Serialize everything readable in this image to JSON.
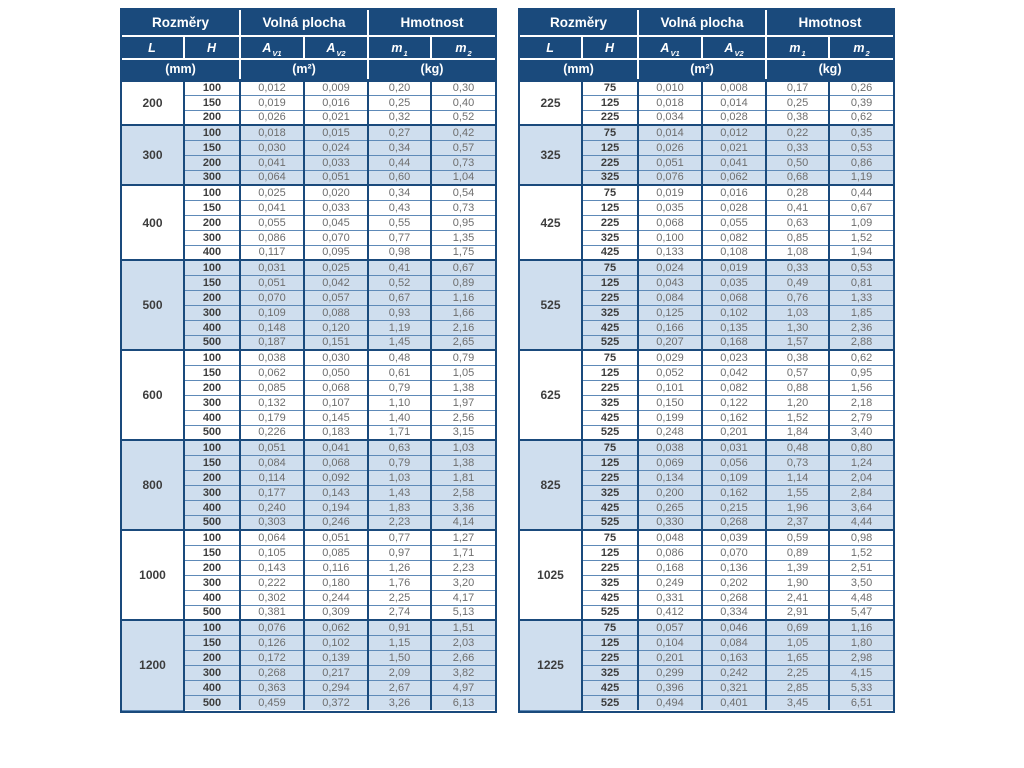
{
  "colors": {
    "header_bg": "#1a4a7c",
    "header_text": "#ffffff",
    "band_bg": "#cfdeee",
    "grid_line": "#1a4a7c",
    "row_line": "#5e8ab8",
    "dim_text": "#3d3d3d",
    "value_text": "#6e6e6e"
  },
  "header": {
    "groups": [
      "Rozměry",
      "Volná plocha",
      "Hmotnost"
    ],
    "columns": [
      {
        "main": "L",
        "sub": ""
      },
      {
        "main": "H",
        "sub": ""
      },
      {
        "main": "A",
        "sub": "V1"
      },
      {
        "main": "A",
        "sub": "V2"
      },
      {
        "main": "m",
        "sub": "1"
      },
      {
        "main": "m",
        "sub": "2"
      }
    ],
    "units": [
      "(mm)",
      "(m²)",
      "(kg)"
    ]
  },
  "tables": [
    {
      "name": "left",
      "groups": [
        {
          "L": "200",
          "rows": [
            [
              "100",
              "0,012",
              "0,009",
              "0,20",
              "0,30"
            ],
            [
              "150",
              "0,019",
              "0,016",
              "0,25",
              "0,40"
            ],
            [
              "200",
              "0,026",
              "0,021",
              "0,32",
              "0,52"
            ]
          ]
        },
        {
          "L": "300",
          "rows": [
            [
              "100",
              "0,018",
              "0,015",
              "0,27",
              "0,42"
            ],
            [
              "150",
              "0,030",
              "0,024",
              "0,34",
              "0,57"
            ],
            [
              "200",
              "0,041",
              "0,033",
              "0,44",
              "0,73"
            ],
            [
              "300",
              "0,064",
              "0,051",
              "0,60",
              "1,04"
            ]
          ]
        },
        {
          "L": "400",
          "rows": [
            [
              "100",
              "0,025",
              "0,020",
              "0,34",
              "0,54"
            ],
            [
              "150",
              "0,041",
              "0,033",
              "0,43",
              "0,73"
            ],
            [
              "200",
              "0,055",
              "0,045",
              "0,55",
              "0,95"
            ],
            [
              "300",
              "0,086",
              "0,070",
              "0,77",
              "1,35"
            ],
            [
              "400",
              "0,117",
              "0,095",
              "0,98",
              "1,75"
            ]
          ]
        },
        {
          "L": "500",
          "rows": [
            [
              "100",
              "0,031",
              "0,025",
              "0,41",
              "0,67"
            ],
            [
              "150",
              "0,051",
              "0,042",
              "0,52",
              "0,89"
            ],
            [
              "200",
              "0,070",
              "0,057",
              "0,67",
              "1,16"
            ],
            [
              "300",
              "0,109",
              "0,088",
              "0,93",
              "1,66"
            ],
            [
              "400",
              "0,148",
              "0,120",
              "1,19",
              "2,16"
            ],
            [
              "500",
              "0,187",
              "0,151",
              "1,45",
              "2,65"
            ]
          ]
        },
        {
          "L": "600",
          "rows": [
            [
              "100",
              "0,038",
              "0,030",
              "0,48",
              "0,79"
            ],
            [
              "150",
              "0,062",
              "0,050",
              "0,61",
              "1,05"
            ],
            [
              "200",
              "0,085",
              "0,068",
              "0,79",
              "1,38"
            ],
            [
              "300",
              "0,132",
              "0,107",
              "1,10",
              "1,97"
            ],
            [
              "400",
              "0,179",
              "0,145",
              "1,40",
              "2,56"
            ],
            [
              "500",
              "0,226",
              "0,183",
              "1,71",
              "3,15"
            ]
          ]
        },
        {
          "L": "800",
          "rows": [
            [
              "100",
              "0,051",
              "0,041",
              "0,63",
              "1,03"
            ],
            [
              "150",
              "0,084",
              "0,068",
              "0,79",
              "1,38"
            ],
            [
              "200",
              "0,114",
              "0,092",
              "1,03",
              "1,81"
            ],
            [
              "300",
              "0,177",
              "0,143",
              "1,43",
              "2,58"
            ],
            [
              "400",
              "0,240",
              "0,194",
              "1,83",
              "3,36"
            ],
            [
              "500",
              "0,303",
              "0,246",
              "2,23",
              "4,14"
            ]
          ]
        },
        {
          "L": "1000",
          "rows": [
            [
              "100",
              "0,064",
              "0,051",
              "0,77",
              "1,27"
            ],
            [
              "150",
              "0,105",
              "0,085",
              "0,97",
              "1,71"
            ],
            [
              "200",
              "0,143",
              "0,116",
              "1,26",
              "2,23"
            ],
            [
              "300",
              "0,222",
              "0,180",
              "1,76",
              "3,20"
            ],
            [
              "400",
              "0,302",
              "0,244",
              "2,25",
              "4,17"
            ],
            [
              "500",
              "0,381",
              "0,309",
              "2,74",
              "5,13"
            ]
          ]
        },
        {
          "L": "1200",
          "rows": [
            [
              "100",
              "0,076",
              "0,062",
              "0,91",
              "1,51"
            ],
            [
              "150",
              "0,126",
              "0,102",
              "1,15",
              "2,03"
            ],
            [
              "200",
              "0,172",
              "0,139",
              "1,50",
              "2,66"
            ],
            [
              "300",
              "0,268",
              "0,217",
              "2,09",
              "3,82"
            ],
            [
              "400",
              "0,363",
              "0,294",
              "2,67",
              "4,97"
            ],
            [
              "500",
              "0,459",
              "0,372",
              "3,26",
              "6,13"
            ]
          ]
        }
      ]
    },
    {
      "name": "right",
      "groups": [
        {
          "L": "225",
          "rows": [
            [
              "75",
              "0,010",
              "0,008",
              "0,17",
              "0,26"
            ],
            [
              "125",
              "0,018",
              "0,014",
              "0,25",
              "0,39"
            ],
            [
              "225",
              "0,034",
              "0,028",
              "0,38",
              "0,62"
            ]
          ]
        },
        {
          "L": "325",
          "rows": [
            [
              "75",
              "0,014",
              "0,012",
              "0,22",
              "0,35"
            ],
            [
              "125",
              "0,026",
              "0,021",
              "0,33",
              "0,53"
            ],
            [
              "225",
              "0,051",
              "0,041",
              "0,50",
              "0,86"
            ],
            [
              "325",
              "0,076",
              "0,062",
              "0,68",
              "1,19"
            ]
          ]
        },
        {
          "L": "425",
          "rows": [
            [
              "75",
              "0,019",
              "0,016",
              "0,28",
              "0,44"
            ],
            [
              "125",
              "0,035",
              "0,028",
              "0,41",
              "0,67"
            ],
            [
              "225",
              "0,068",
              "0,055",
              "0,63",
              "1,09"
            ],
            [
              "325",
              "0,100",
              "0,082",
              "0,85",
              "1,52"
            ],
            [
              "425",
              "0,133",
              "0,108",
              "1,08",
              "1,94"
            ]
          ]
        },
        {
          "L": "525",
          "rows": [
            [
              "75",
              "0,024",
              "0,019",
              "0,33",
              "0,53"
            ],
            [
              "125",
              "0,043",
              "0,035",
              "0,49",
              "0,81"
            ],
            [
              "225",
              "0,084",
              "0,068",
              "0,76",
              "1,33"
            ],
            [
              "325",
              "0,125",
              "0,102",
              "1,03",
              "1,85"
            ],
            [
              "425",
              "0,166",
              "0,135",
              "1,30",
              "2,36"
            ],
            [
              "525",
              "0,207",
              "0,168",
              "1,57",
              "2,88"
            ]
          ]
        },
        {
          "L": "625",
          "rows": [
            [
              "75",
              "0,029",
              "0,023",
              "0,38",
              "0,62"
            ],
            [
              "125",
              "0,052",
              "0,042",
              "0,57",
              "0,95"
            ],
            [
              "225",
              "0,101",
              "0,082",
              "0,88",
              "1,56"
            ],
            [
              "325",
              "0,150",
              "0,122",
              "1,20",
              "2,18"
            ],
            [
              "425",
              "0,199",
              "0,162",
              "1,52",
              "2,79"
            ],
            [
              "525",
              "0,248",
              "0,201",
              "1,84",
              "3,40"
            ]
          ]
        },
        {
          "L": "825",
          "rows": [
            [
              "75",
              "0,038",
              "0,031",
              "0,48",
              "0,80"
            ],
            [
              "125",
              "0,069",
              "0,056",
              "0,73",
              "1,24"
            ],
            [
              "225",
              "0,134",
              "0,109",
              "1,14",
              "2,04"
            ],
            [
              "325",
              "0,200",
              "0,162",
              "1,55",
              "2,84"
            ],
            [
              "425",
              "0,265",
              "0,215",
              "1,96",
              "3,64"
            ],
            [
              "525",
              "0,330",
              "0,268",
              "2,37",
              "4,44"
            ]
          ]
        },
        {
          "L": "1025",
          "rows": [
            [
              "75",
              "0,048",
              "0,039",
              "0,59",
              "0,98"
            ],
            [
              "125",
              "0,086",
              "0,070",
              "0,89",
              "1,52"
            ],
            [
              "225",
              "0,168",
              "0,136",
              "1,39",
              "2,51"
            ],
            [
              "325",
              "0,249",
              "0,202",
              "1,90",
              "3,50"
            ],
            [
              "425",
              "0,331",
              "0,268",
              "2,41",
              "4,48"
            ],
            [
              "525",
              "0,412",
              "0,334",
              "2,91",
              "5,47"
            ]
          ]
        },
        {
          "L": "1225",
          "rows": [
            [
              "75",
              "0,057",
              "0,046",
              "0,69",
              "1,16"
            ],
            [
              "125",
              "0,104",
              "0,084",
              "1,05",
              "1,80"
            ],
            [
              "225",
              "0,201",
              "0,163",
              "1,65",
              "2,98"
            ],
            [
              "325",
              "0,299",
              "0,242",
              "2,25",
              "4,15"
            ],
            [
              "425",
              "0,396",
              "0,321",
              "2,85",
              "5,33"
            ],
            [
              "525",
              "0,494",
              "0,401",
              "3,45",
              "6,51"
            ]
          ]
        }
      ]
    }
  ]
}
